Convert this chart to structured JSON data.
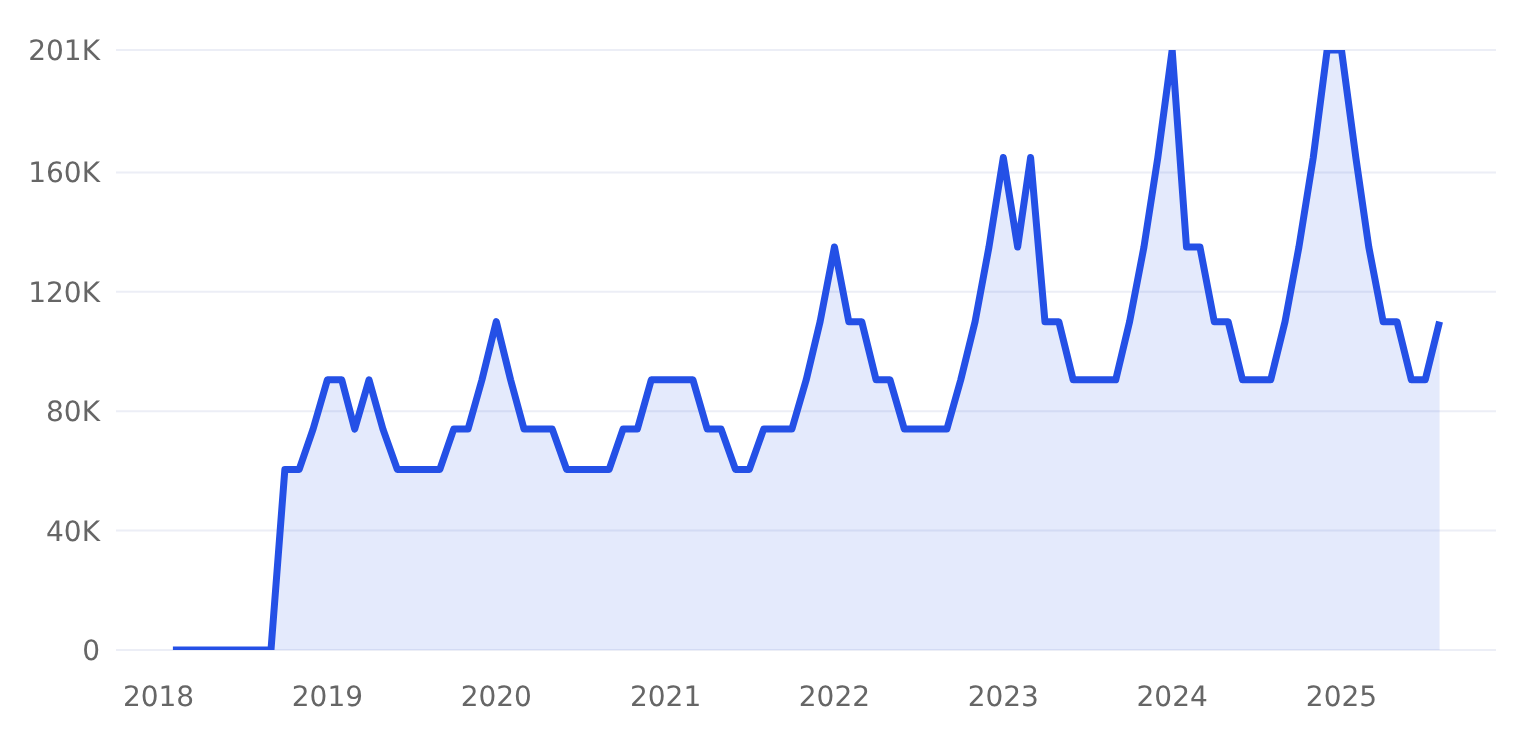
{
  "chart_data": {
    "type": "area",
    "x": [
      "2018-02",
      "2018-03",
      "2018-04",
      "2018-05",
      "2018-06",
      "2018-07",
      "2018-08",
      "2018-09",
      "2018-10",
      "2018-11",
      "2018-12",
      "2019-01",
      "2019-02",
      "2019-03",
      "2019-04",
      "2019-05",
      "2019-06",
      "2019-07",
      "2019-08",
      "2019-09",
      "2019-10",
      "2019-11",
      "2019-12",
      "2020-01",
      "2020-02",
      "2020-03",
      "2020-04",
      "2020-05",
      "2020-06",
      "2020-07",
      "2020-08",
      "2020-09",
      "2020-10",
      "2020-11",
      "2020-12",
      "2021-01",
      "2021-02",
      "2021-03",
      "2021-04",
      "2021-05",
      "2021-06",
      "2021-07",
      "2021-08",
      "2021-09",
      "2021-10",
      "2021-11",
      "2021-12",
      "2022-01",
      "2022-02",
      "2022-03",
      "2022-04",
      "2022-05",
      "2022-06",
      "2022-07",
      "2022-08",
      "2022-09",
      "2022-10",
      "2022-11",
      "2022-12",
      "2023-01",
      "2023-02",
      "2023-03",
      "2023-04",
      "2023-05",
      "2023-06",
      "2023-07",
      "2023-08",
      "2023-09",
      "2023-10",
      "2023-11",
      "2023-12",
      "2024-01",
      "2024-02",
      "2024-03",
      "2024-04",
      "2024-05",
      "2024-06",
      "2024-07",
      "2024-08",
      "2024-09",
      "2024-10",
      "2024-11",
      "2024-12",
      "2025-01",
      "2025-02",
      "2025-03",
      "2025-04",
      "2025-05",
      "2025-06",
      "2025-07",
      "2025-08"
    ],
    "series": [
      {
        "color": "#2450e6",
        "values": [
          0,
          0,
          0,
          0,
          0,
          0,
          0,
          0,
          60500,
          60500,
          74000,
          90500,
          90500,
          74000,
          90500,
          74000,
          60500,
          60500,
          60500,
          60500,
          74000,
          74000,
          90500,
          110000,
          90500,
          74000,
          74000,
          74000,
          60500,
          60500,
          60500,
          60500,
          74000,
          74000,
          90500,
          90500,
          90500,
          90500,
          74000,
          74000,
          60500,
          60500,
          74000,
          74000,
          74000,
          90500,
          110000,
          135000,
          110000,
          110000,
          90500,
          90500,
          74000,
          74000,
          74000,
          74000,
          90500,
          110000,
          135000,
          165000,
          135000,
          165000,
          110000,
          110000,
          90500,
          90500,
          90500,
          90500,
          110000,
          135000,
          165000,
          201000,
          135000,
          135000,
          110000,
          110000,
          90500,
          90500,
          90500,
          110000,
          135000,
          165000,
          201000,
          201000,
          165000,
          135000,
          110000,
          110000,
          90500,
          90500,
          110000
        ]
      }
    ],
    "xlim": [
      "2017-10",
      "2025-12"
    ],
    "xticks": [
      "2018",
      "2019",
      "2020",
      "2021",
      "2022",
      "2023",
      "2024",
      "2025"
    ],
    "ylim": [
      0,
      201000
    ],
    "yticks": [
      0,
      {
        "value": 40000,
        "label": "40K"
      },
      {
        "value": 80000,
        "label": "80K"
      },
      {
        "value": 120000,
        "label": "120K"
      },
      {
        "value": 160000,
        "label": "160K"
      },
      {
        "value": 201000,
        "label": "201K"
      }
    ],
    "grid": "y"
  }
}
